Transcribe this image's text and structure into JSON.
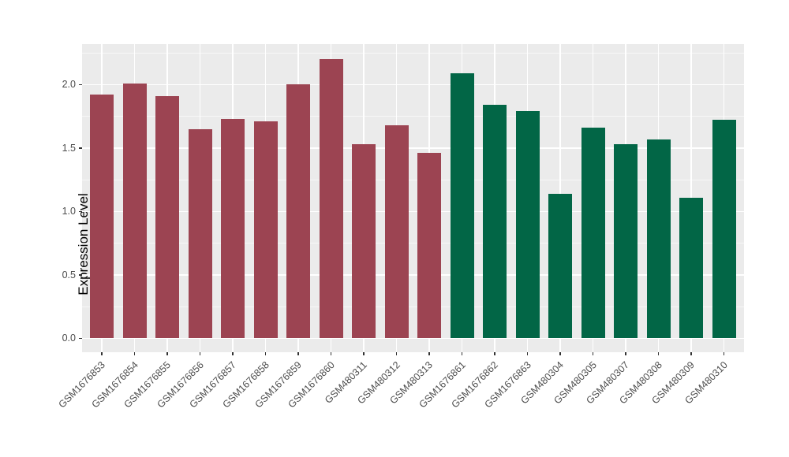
{
  "chart_data": {
    "type": "bar",
    "title": "",
    "xlabel": "",
    "ylabel": "Expression Level",
    "ylim": [
      -0.11,
      2.32
    ],
    "yticks": [
      "0.0",
      "0.5",
      "1.0",
      "1.5",
      "2.0"
    ],
    "ytick_values": [
      0.0,
      0.5,
      1.0,
      1.5,
      2.0
    ],
    "yminor_values": [
      0.25,
      0.75,
      1.25,
      1.75,
      2.25
    ],
    "grid": "on",
    "legend": "none",
    "panel_background_color": "#EBEBEB",
    "gridline_color": "#ffffff",
    "group_colors": {
      "red": "#9C4452",
      "green": "#026646"
    },
    "bars": [
      {
        "label": "GSM1676853",
        "value": 1.92,
        "group": "red"
      },
      {
        "label": "GSM1676854",
        "value": 2.01,
        "group": "red"
      },
      {
        "label": "GSM1676855",
        "value": 1.91,
        "group": "red"
      },
      {
        "label": "GSM1676856",
        "value": 1.65,
        "group": "red"
      },
      {
        "label": "GSM1676857",
        "value": 1.73,
        "group": "red"
      },
      {
        "label": "GSM1676858",
        "value": 1.71,
        "group": "red"
      },
      {
        "label": "GSM1676859",
        "value": 2.0,
        "group": "red"
      },
      {
        "label": "GSM1676860",
        "value": 2.2,
        "group": "red"
      },
      {
        "label": "GSM480311",
        "value": 1.53,
        "group": "red"
      },
      {
        "label": "GSM480312",
        "value": 1.68,
        "group": "red"
      },
      {
        "label": "GSM480313",
        "value": 1.46,
        "group": "red"
      },
      {
        "label": "GSM1676861",
        "value": 2.09,
        "group": "green"
      },
      {
        "label": "GSM1676862",
        "value": 1.84,
        "group": "green"
      },
      {
        "label": "GSM1676863",
        "value": 1.79,
        "group": "green"
      },
      {
        "label": "GSM480304",
        "value": 1.14,
        "group": "green"
      },
      {
        "label": "GSM480305",
        "value": 1.66,
        "group": "green"
      },
      {
        "label": "GSM480307",
        "value": 1.53,
        "group": "green"
      },
      {
        "label": "GSM480308",
        "value": 1.57,
        "group": "green"
      },
      {
        "label": "GSM480309",
        "value": 1.11,
        "group": "green"
      },
      {
        "label": "GSM480310",
        "value": 1.72,
        "group": "green"
      }
    ]
  }
}
